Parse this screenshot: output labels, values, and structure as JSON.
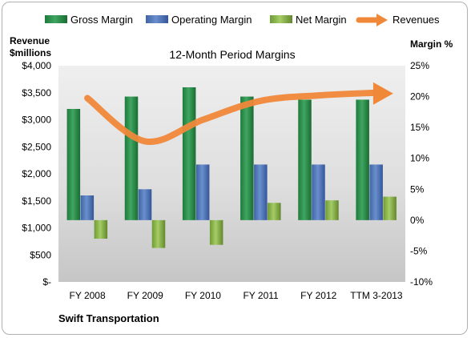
{
  "chart_data": {
    "type": "bar",
    "title": "12-Month Period Margins",
    "left_axis_label_line1": "Revenue",
    "left_axis_label_line2": "$millions",
    "right_axis_label": "Margin %",
    "company": "Swift Transportation",
    "categories": [
      "FY 2008",
      "FY 2009",
      "FY 2010",
      "FY 2011",
      "FY 2012",
      "TTM 3-2013"
    ],
    "left_ticks": [
      "$-",
      "$500",
      "$1,000",
      "$1,500",
      "$2,000",
      "$2,500",
      "$3,000",
      "$3,500",
      "$4,000"
    ],
    "right_ticks": [
      "-10%",
      "-5%",
      "0%",
      "5%",
      "10%",
      "15%",
      "20%",
      "25%"
    ],
    "ylim_left": [
      0,
      4000
    ],
    "ylim_right": [
      -10,
      25
    ],
    "legend_position": "top",
    "grid": false,
    "series": [
      {
        "name": "Gross Margin",
        "kind": "bar",
        "axis": "right",
        "color": "#2a8c4a",
        "values": [
          18.0,
          20.0,
          21.5,
          20.0,
          19.5,
          19.5
        ]
      },
      {
        "name": "Operating Margin",
        "kind": "bar",
        "axis": "right",
        "color": "#4a72b4",
        "values": [
          4.0,
          5.0,
          9.0,
          9.0,
          9.0,
          9.0
        ]
      },
      {
        "name": "Net Margin",
        "kind": "bar",
        "axis": "right",
        "color": "#8cb64a",
        "values": [
          -3.0,
          -4.5,
          -4.0,
          2.8,
          3.2,
          3.8
        ]
      },
      {
        "name": "Revenues",
        "kind": "line",
        "axis": "left",
        "color": "#f0883a",
        "values": [
          3400,
          2600,
          3000,
          3350,
          3450,
          3500
        ]
      }
    ]
  }
}
